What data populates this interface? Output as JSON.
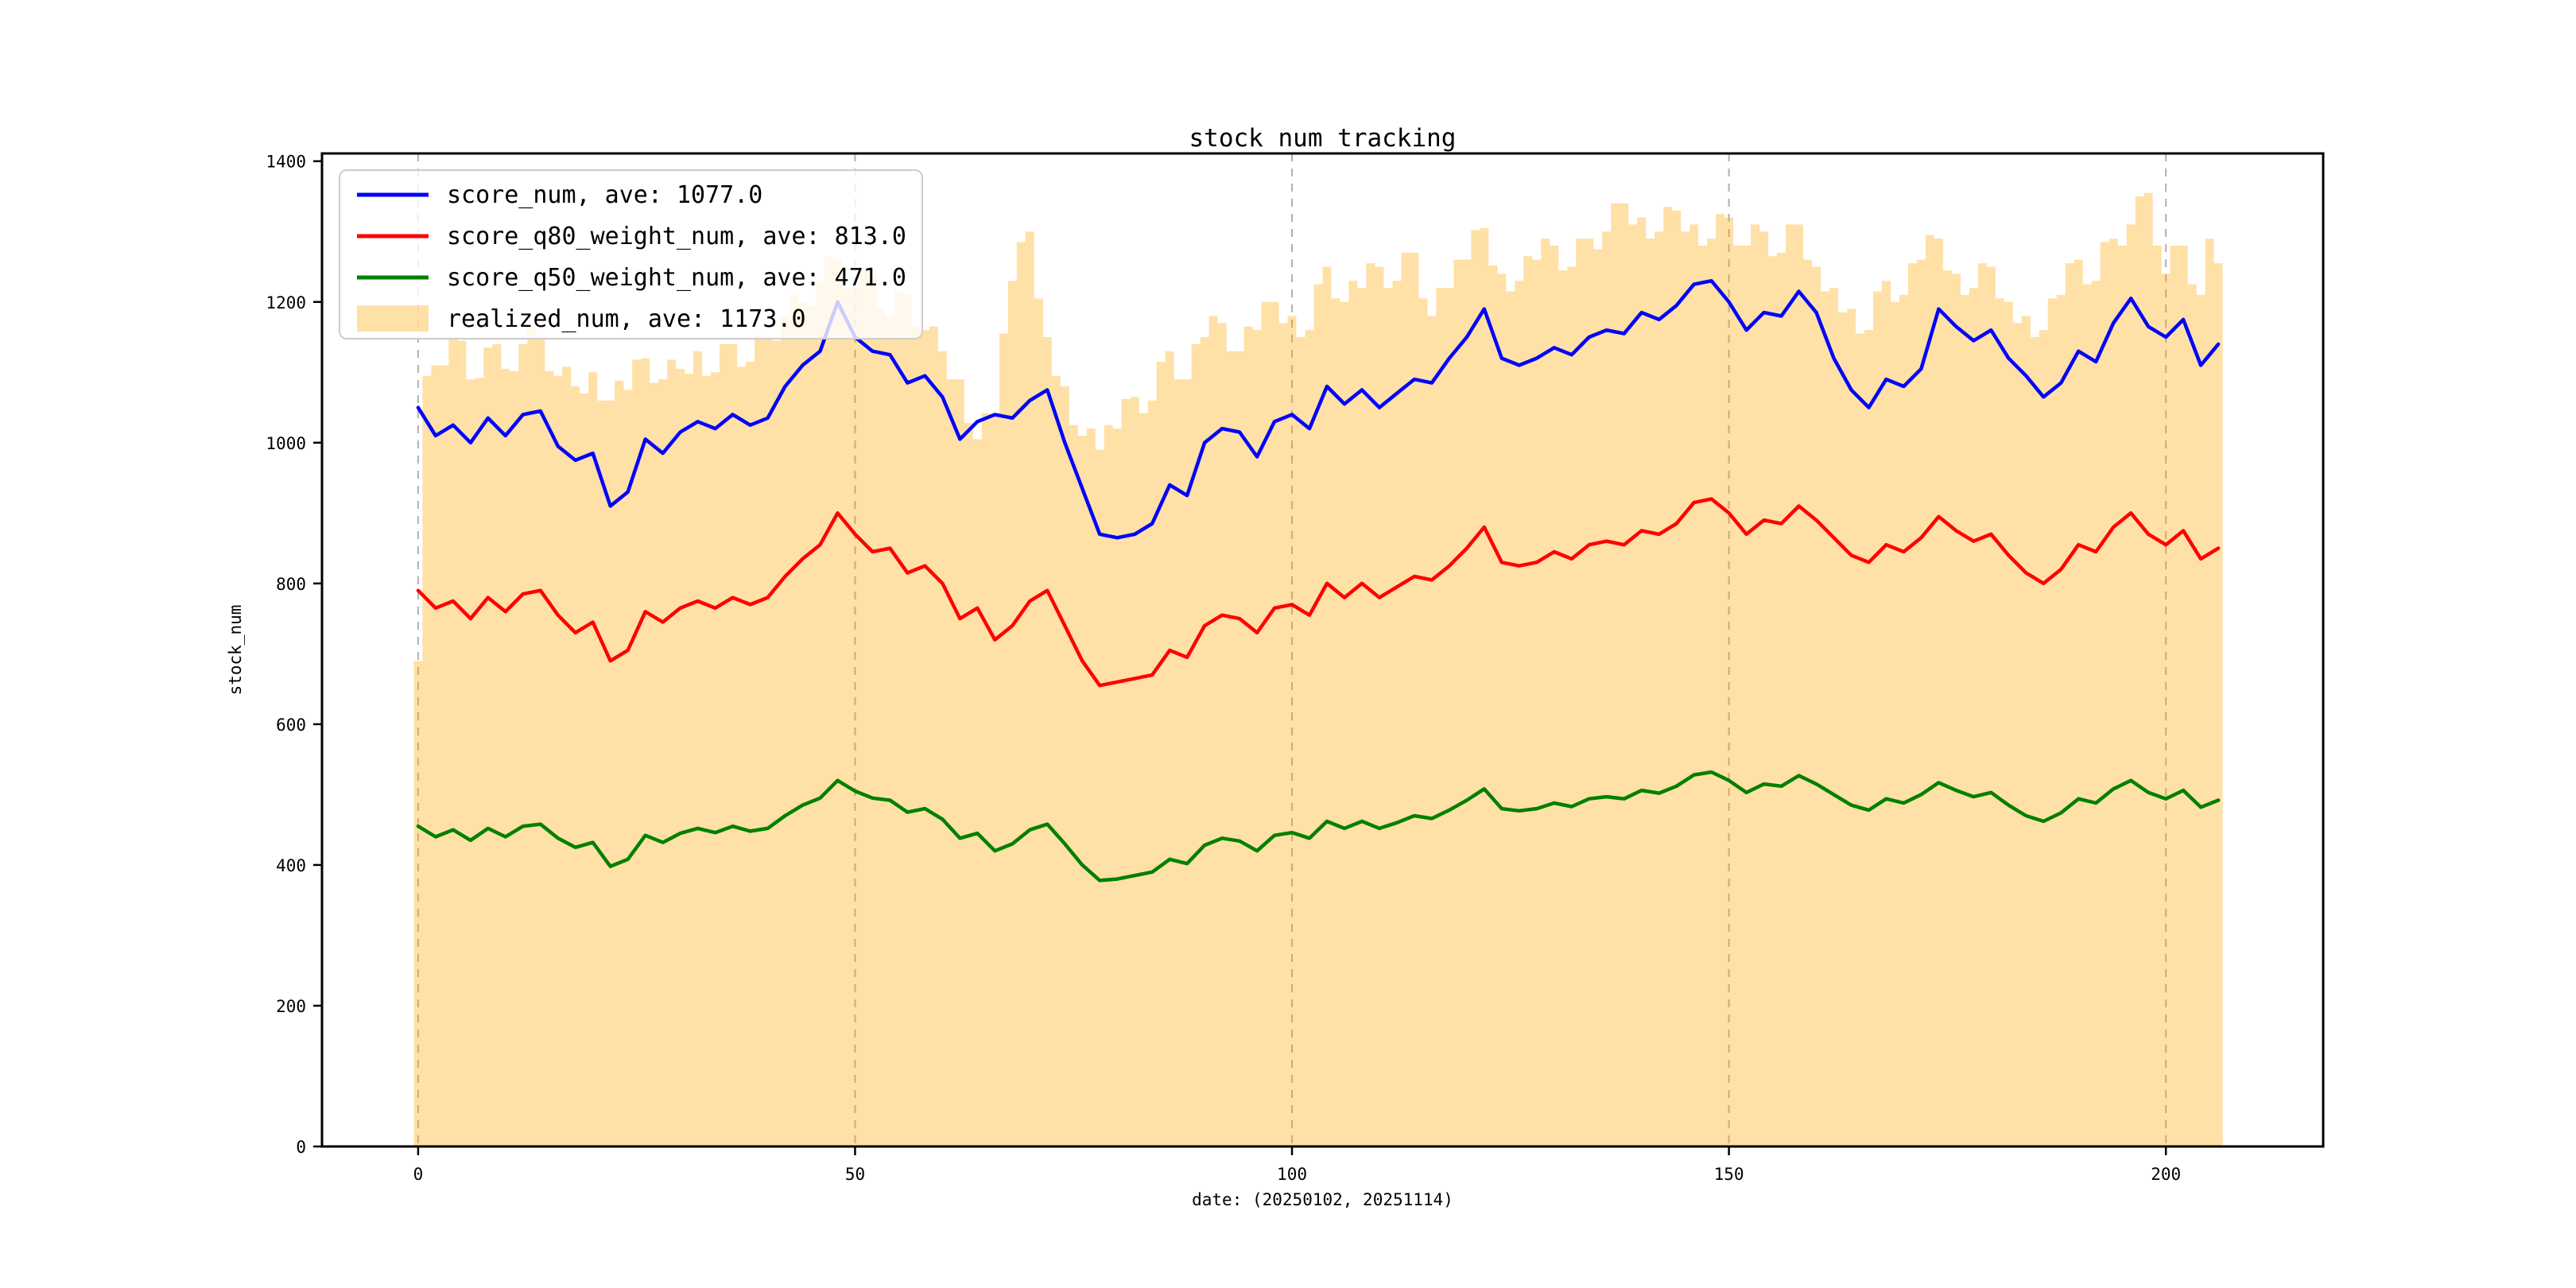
{
  "figure": {
    "background": "#ffffff",
    "frame_color": "#000000",
    "grid_color": "#b0b0b0"
  },
  "chart_data": {
    "type": "line",
    "title": "stock num tracking",
    "xlabel": "date: (20250102, 20251114)",
    "ylabel": "stock_num",
    "xlim": [
      -11,
      218
    ],
    "ylim": [
      0,
      1411
    ],
    "x_ticks": [
      0,
      50,
      100,
      150,
      200
    ],
    "y_ticks": [
      0,
      200,
      400,
      600,
      800,
      1000,
      1200,
      1400
    ],
    "grid": "vertical-dashed-at-x-ticks",
    "legend_position": "upper left",
    "series": [
      {
        "name": "score_num, ave: 1077.0",
        "type": "line",
        "color": "#0000ff",
        "x_start": 0,
        "x_step": 2,
        "values": [
          1050,
          1010,
          1025,
          1000,
          1035,
          1010,
          1040,
          1045,
          995,
          975,
          985,
          910,
          930,
          1005,
          985,
          1015,
          1030,
          1020,
          1040,
          1025,
          1035,
          1080,
          1110,
          1130,
          1200,
          1150,
          1130,
          1125,
          1085,
          1095,
          1065,
          1005,
          1030,
          1040,
          1035,
          1060,
          1075,
          1000,
          935,
          870,
          865,
          870,
          885,
          940,
          925,
          1000,
          1020,
          1015,
          980,
          1030,
          1040,
          1020,
          1080,
          1055,
          1075,
          1050,
          1070,
          1090,
          1085,
          1120,
          1150,
          1190,
          1120,
          1110,
          1120,
          1135,
          1125,
          1150,
          1160,
          1155,
          1185,
          1175,
          1195,
          1225,
          1230,
          1200,
          1160,
          1185,
          1180,
          1215,
          1185,
          1120,
          1075,
          1050,
          1090,
          1080,
          1105,
          1190,
          1165,
          1145,
          1160,
          1120,
          1095,
          1065,
          1085,
          1130,
          1115,
          1170,
          1205,
          1165,
          1150,
          1175,
          1110,
          1140
        ]
      },
      {
        "name": "score_q80_weight_num, ave: 813.0",
        "type": "line",
        "color": "#ff0000",
        "x_start": 0,
        "x_step": 2,
        "values": [
          790,
          765,
          775,
          750,
          780,
          760,
          785,
          790,
          755,
          730,
          745,
          690,
          705,
          760,
          745,
          765,
          775,
          765,
          780,
          770,
          780,
          810,
          835,
          855,
          900,
          870,
          845,
          850,
          815,
          825,
          800,
          750,
          765,
          720,
          740,
          775,
          790,
          740,
          690,
          655,
          660,
          665,
          670,
          705,
          695,
          740,
          755,
          750,
          730,
          765,
          770,
          755,
          800,
          780,
          800,
          780,
          795,
          810,
          805,
          825,
          850,
          880,
          830,
          825,
          830,
          845,
          835,
          855,
          860,
          855,
          875,
          870,
          885,
          915,
          920,
          900,
          870,
          890,
          885,
          910,
          890,
          865,
          840,
          830,
          855,
          845,
          865,
          895,
          875,
          860,
          870,
          840,
          815,
          800,
          820,
          855,
          845,
          880,
          900,
          870,
          855,
          875,
          835,
          850
        ]
      },
      {
        "name": "score_q50_weight_num, ave: 471.0",
        "type": "line",
        "color": "#008000",
        "x_start": 0,
        "x_step": 2,
        "values": [
          455,
          440,
          450,
          435,
          452,
          440,
          455,
          458,
          438,
          425,
          432,
          398,
          408,
          442,
          432,
          445,
          452,
          446,
          455,
          448,
          452,
          470,
          485,
          495,
          520,
          505,
          495,
          492,
          475,
          480,
          465,
          438,
          445,
          420,
          430,
          450,
          458,
          430,
          400,
          378,
          380,
          385,
          390,
          408,
          402,
          428,
          438,
          434,
          420,
          442,
          446,
          438,
          462,
          452,
          462,
          452,
          460,
          470,
          466,
          478,
          492,
          508,
          480,
          477,
          480,
          488,
          483,
          494,
          497,
          494,
          506,
          502,
          512,
          528,
          532,
          520,
          503,
          515,
          512,
          527,
          515,
          500,
          485,
          478,
          494,
          488,
          500,
          517,
          506,
          497,
          503,
          485,
          470,
          462,
          474,
          494,
          488,
          508,
          520,
          503,
          494,
          506,
          482,
          492
        ]
      },
      {
        "name": "realized_num, ave: 1173.0",
        "type": "bar",
        "color": "#ffa500",
        "fill_opacity": 0.35,
        "x_start": 0,
        "x_step": 1,
        "values": [
          690,
          1095,
          1110,
          1110,
          1150,
          1145,
          1090,
          1092,
          1135,
          1140,
          1105,
          1102,
          1140,
          1165,
          1150,
          1102,
          1095,
          1108,
          1080,
          1070,
          1100,
          1060,
          1060,
          1088,
          1075,
          1118,
          1120,
          1085,
          1090,
          1118,
          1105,
          1098,
          1130,
          1095,
          1100,
          1140,
          1140,
          1108,
          1115,
          1152,
          1150,
          1145,
          1180,
          1210,
          1200,
          1195,
          1230,
          1265,
          1260,
          1220,
          1220,
          1250,
          1240,
          1190,
          1180,
          1215,
          1210,
          1165,
          1160,
          1165,
          1130,
          1090,
          1090,
          1028,
          1005,
          1042,
          1040,
          1155,
          1230,
          1285,
          1300,
          1205,
          1150,
          1095,
          1080,
          1025,
          1010,
          1020,
          990,
          1025,
          1020,
          1062,
          1065,
          1042,
          1060,
          1115,
          1130,
          1090,
          1090,
          1140,
          1150,
          1180,
          1170,
          1130,
          1130,
          1165,
          1160,
          1200,
          1200,
          1170,
          1180,
          1150,
          1160,
          1225,
          1250,
          1205,
          1200,
          1230,
          1220,
          1255,
          1250,
          1220,
          1230,
          1270,
          1270,
          1205,
          1180,
          1220,
          1220,
          1260,
          1260,
          1302,
          1305,
          1252,
          1240,
          1215,
          1230,
          1265,
          1260,
          1290,
          1280,
          1245,
          1250,
          1290,
          1290,
          1275,
          1300,
          1340,
          1340,
          1310,
          1320,
          1290,
          1300,
          1335,
          1330,
          1300,
          1310,
          1280,
          1290,
          1325,
          1320,
          1280,
          1280,
          1310,
          1300,
          1265,
          1270,
          1310,
          1310,
          1260,
          1250,
          1215,
          1220,
          1185,
          1190,
          1155,
          1160,
          1215,
          1230,
          1200,
          1210,
          1255,
          1260,
          1295,
          1290,
          1245,
          1240,
          1210,
          1220,
          1255,
          1250,
          1205,
          1200,
          1170,
          1180,
          1150,
          1160,
          1205,
          1210,
          1255,
          1260,
          1225,
          1230,
          1285,
          1290,
          1280,
          1310,
          1350,
          1355,
          1280,
          1240,
          1280,
          1280,
          1225,
          1210,
          1290,
          1255
        ]
      }
    ]
  }
}
